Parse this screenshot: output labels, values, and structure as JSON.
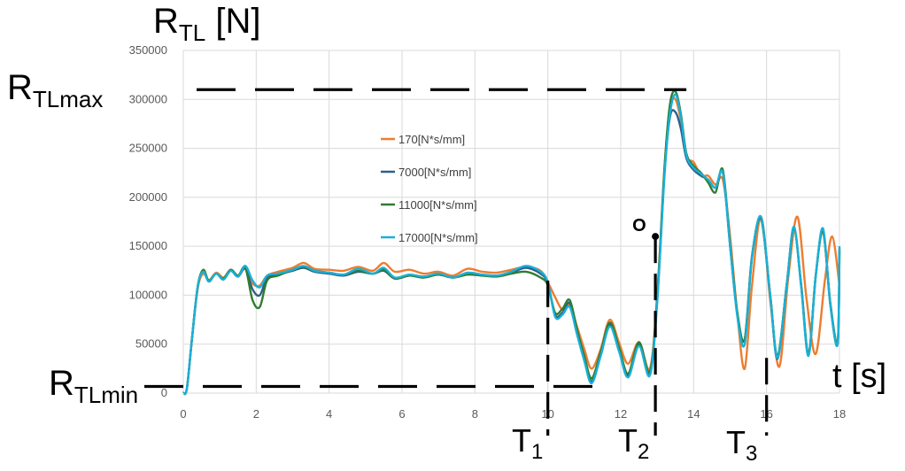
{
  "chart_data": {
    "type": "line",
    "ylabel_main": "R",
    "ylabel_sub": "TL",
    "ylabel_unit": " [N]",
    "xlabel": "t [s]",
    "xlim": [
      0,
      18
    ],
    "ylim": [
      0,
      350000
    ],
    "xticks": [
      0,
      2,
      4,
      6,
      8,
      10,
      12,
      14,
      16,
      18
    ],
    "yticks": [
      0,
      50000,
      100000,
      150000,
      200000,
      250000,
      300000,
      350000
    ],
    "grid": true,
    "legend_position": "inside-left",
    "series": [
      {
        "name": "170[N*s/mm]",
        "color": "#ed7d31",
        "points": [
          [
            0,
            0
          ],
          [
            0.1,
            5000
          ],
          [
            0.25,
            60000
          ],
          [
            0.4,
            108000
          ],
          [
            0.55,
            122000
          ],
          [
            0.7,
            115000
          ],
          [
            0.9,
            123000
          ],
          [
            1.1,
            118000
          ],
          [
            1.3,
            126000
          ],
          [
            1.5,
            120000
          ],
          [
            1.7,
            128000
          ],
          [
            1.9,
            112000
          ],
          [
            2.1,
            110000
          ],
          [
            2.3,
            120000
          ],
          [
            2.6,
            124000
          ],
          [
            3.0,
            128000
          ],
          [
            3.3,
            133000
          ],
          [
            3.6,
            127000
          ],
          [
            4.0,
            126000
          ],
          [
            4.4,
            125000
          ],
          [
            4.8,
            129000
          ],
          [
            5.2,
            125000
          ],
          [
            5.5,
            133000
          ],
          [
            5.8,
            124000
          ],
          [
            6.2,
            126000
          ],
          [
            6.6,
            122000
          ],
          [
            7.0,
            124000
          ],
          [
            7.4,
            120000
          ],
          [
            7.8,
            127000
          ],
          [
            8.2,
            124000
          ],
          [
            8.6,
            123000
          ],
          [
            9.0,
            126000
          ],
          [
            9.4,
            129000
          ],
          [
            9.8,
            125000
          ],
          [
            10.0,
            113000
          ],
          [
            10.2,
            98000
          ],
          [
            10.4,
            85000
          ],
          [
            10.6,
            90000
          ],
          [
            10.8,
            68000
          ],
          [
            11.0,
            45000
          ],
          [
            11.2,
            25000
          ],
          [
            11.45,
            45000
          ],
          [
            11.7,
            75000
          ],
          [
            11.95,
            52000
          ],
          [
            12.2,
            30000
          ],
          [
            12.5,
            52000
          ],
          [
            12.8,
            25000
          ],
          [
            13.0,
            100000
          ],
          [
            13.2,
            230000
          ],
          [
            13.35,
            292000
          ],
          [
            13.5,
            300000
          ],
          [
            13.65,
            278000
          ],
          [
            13.8,
            242000
          ],
          [
            14.0,
            236000
          ],
          [
            14.2,
            222000
          ],
          [
            14.4,
            222000
          ],
          [
            14.6,
            213000
          ],
          [
            14.8,
            218000
          ],
          [
            15.0,
            160000
          ],
          [
            15.2,
            80000
          ],
          [
            15.4,
            25000
          ],
          [
            15.6,
            110000
          ],
          [
            15.85,
            180000
          ],
          [
            16.1,
            95000
          ],
          [
            16.35,
            27000
          ],
          [
            16.6,
            120000
          ],
          [
            16.85,
            180000
          ],
          [
            17.1,
            95000
          ],
          [
            17.35,
            40000
          ],
          [
            17.6,
            115000
          ],
          [
            17.8,
            160000
          ],
          [
            18.0,
            110000
          ]
        ]
      },
      {
        "name": "7000[N*s/mm]",
        "color": "#2f5f8a",
        "points": [
          [
            0,
            0
          ],
          [
            0.1,
            5000
          ],
          [
            0.25,
            60000
          ],
          [
            0.4,
            110000
          ],
          [
            0.55,
            125000
          ],
          [
            0.7,
            114000
          ],
          [
            0.9,
            122000
          ],
          [
            1.1,
            116000
          ],
          [
            1.3,
            125000
          ],
          [
            1.5,
            119000
          ],
          [
            1.7,
            127000
          ],
          [
            1.9,
            106000
          ],
          [
            2.1,
            100000
          ],
          [
            2.3,
            118000
          ],
          [
            2.6,
            121000
          ],
          [
            3.0,
            125000
          ],
          [
            3.3,
            128000
          ],
          [
            3.6,
            124000
          ],
          [
            4.0,
            122000
          ],
          [
            4.4,
            120000
          ],
          [
            4.8,
            124000
          ],
          [
            5.2,
            122000
          ],
          [
            5.5,
            125000
          ],
          [
            5.8,
            117000
          ],
          [
            6.2,
            120000
          ],
          [
            6.6,
            119000
          ],
          [
            7.0,
            121000
          ],
          [
            7.4,
            118000
          ],
          [
            7.8,
            122000
          ],
          [
            8.2,
            121000
          ],
          [
            8.6,
            120000
          ],
          [
            9.0,
            123000
          ],
          [
            9.4,
            128000
          ],
          [
            9.8,
            122000
          ],
          [
            10.0,
            112000
          ],
          [
            10.2,
            80000
          ],
          [
            10.4,
            82000
          ],
          [
            10.6,
            92000
          ],
          [
            10.8,
            62000
          ],
          [
            11.0,
            35000
          ],
          [
            11.2,
            12000
          ],
          [
            11.45,
            40000
          ],
          [
            11.7,
            70000
          ],
          [
            11.95,
            45000
          ],
          [
            12.2,
            18000
          ],
          [
            12.5,
            50000
          ],
          [
            12.8,
            20000
          ],
          [
            13.0,
            95000
          ],
          [
            13.2,
            225000
          ],
          [
            13.35,
            282000
          ],
          [
            13.5,
            287000
          ],
          [
            13.65,
            270000
          ],
          [
            13.8,
            240000
          ],
          [
            14.0,
            228000
          ],
          [
            14.2,
            222000
          ],
          [
            14.4,
            218000
          ],
          [
            14.6,
            210000
          ],
          [
            14.8,
            225000
          ],
          [
            15.0,
            150000
          ],
          [
            15.2,
            80000
          ],
          [
            15.4,
            55000
          ],
          [
            15.6,
            140000
          ],
          [
            15.85,
            178000
          ],
          [
            16.1,
            100000
          ],
          [
            16.3,
            35000
          ],
          [
            16.55,
            110000
          ],
          [
            16.75,
            168000
          ],
          [
            16.95,
            110000
          ],
          [
            17.15,
            40000
          ],
          [
            17.35,
            120000
          ],
          [
            17.55,
            165000
          ],
          [
            17.75,
            90000
          ],
          [
            17.95,
            50000
          ],
          [
            18.0,
            148000
          ]
        ]
      },
      {
        "name": "11000[N*s/mm]",
        "color": "#2e7d32",
        "points": [
          [
            0,
            0
          ],
          [
            0.1,
            5000
          ],
          [
            0.25,
            60000
          ],
          [
            0.4,
            110000
          ],
          [
            0.55,
            126000
          ],
          [
            0.7,
            115000
          ],
          [
            0.9,
            122000
          ],
          [
            1.1,
            117000
          ],
          [
            1.3,
            126000
          ],
          [
            1.5,
            120000
          ],
          [
            1.7,
            128000
          ],
          [
            1.9,
            95000
          ],
          [
            2.1,
            88000
          ],
          [
            2.3,
            115000
          ],
          [
            2.6,
            120000
          ],
          [
            3.0,
            126000
          ],
          [
            3.3,
            129000
          ],
          [
            3.6,
            125000
          ],
          [
            4.0,
            123000
          ],
          [
            4.4,
            121000
          ],
          [
            4.8,
            125000
          ],
          [
            5.2,
            122000
          ],
          [
            5.5,
            126000
          ],
          [
            5.8,
            117000
          ],
          [
            6.2,
            120000
          ],
          [
            6.6,
            118000
          ],
          [
            7.0,
            121000
          ],
          [
            7.4,
            118000
          ],
          [
            7.8,
            121000
          ],
          [
            8.2,
            120000
          ],
          [
            8.6,
            119000
          ],
          [
            9.0,
            122000
          ],
          [
            9.4,
            124000
          ],
          [
            9.8,
            118000
          ],
          [
            10.0,
            110000
          ],
          [
            10.2,
            82000
          ],
          [
            10.4,
            86000
          ],
          [
            10.6,
            95000
          ],
          [
            10.8,
            65000
          ],
          [
            11.0,
            38000
          ],
          [
            11.2,
            15000
          ],
          [
            11.45,
            42000
          ],
          [
            11.7,
            72000
          ],
          [
            11.95,
            47000
          ],
          [
            12.2,
            20000
          ],
          [
            12.5,
            52000
          ],
          [
            12.8,
            22000
          ],
          [
            13.0,
            98000
          ],
          [
            13.2,
            230000
          ],
          [
            13.35,
            295000
          ],
          [
            13.5,
            308000
          ],
          [
            13.65,
            285000
          ],
          [
            13.8,
            245000
          ],
          [
            14.0,
            232000
          ],
          [
            14.2,
            225000
          ],
          [
            14.4,
            215000
          ],
          [
            14.6,
            205000
          ],
          [
            14.8,
            228000
          ],
          [
            15.0,
            152000
          ],
          [
            15.2,
            82000
          ],
          [
            15.4,
            55000
          ],
          [
            15.6,
            138000
          ],
          [
            15.85,
            178000
          ],
          [
            16.1,
            100000
          ],
          [
            16.3,
            38000
          ],
          [
            16.55,
            110000
          ],
          [
            16.75,
            168000
          ],
          [
            16.95,
            110000
          ],
          [
            17.15,
            40000
          ],
          [
            17.35,
            120000
          ],
          [
            17.55,
            165000
          ],
          [
            17.75,
            92000
          ],
          [
            17.95,
            52000
          ],
          [
            18.0,
            145000
          ]
        ]
      },
      {
        "name": "17000[N*s/mm]",
        "color": "#1ab0d8",
        "points": [
          [
            0,
            0
          ],
          [
            0.1,
            5000
          ],
          [
            0.25,
            60000
          ],
          [
            0.4,
            110000
          ],
          [
            0.55,
            124000
          ],
          [
            0.7,
            114000
          ],
          [
            0.9,
            122000
          ],
          [
            1.1,
            116000
          ],
          [
            1.3,
            125000
          ],
          [
            1.5,
            119000
          ],
          [
            1.7,
            130000
          ],
          [
            1.9,
            115000
          ],
          [
            2.1,
            108000
          ],
          [
            2.3,
            120000
          ],
          [
            2.6,
            122000
          ],
          [
            3.0,
            126000
          ],
          [
            3.3,
            130000
          ],
          [
            3.6,
            125000
          ],
          [
            4.0,
            123000
          ],
          [
            4.4,
            121000
          ],
          [
            4.8,
            127000
          ],
          [
            5.2,
            122000
          ],
          [
            5.5,
            128000
          ],
          [
            5.8,
            118000
          ],
          [
            6.2,
            121000
          ],
          [
            6.6,
            119000
          ],
          [
            7.0,
            122000
          ],
          [
            7.4,
            118000
          ],
          [
            7.8,
            123000
          ],
          [
            8.2,
            121000
          ],
          [
            8.6,
            120000
          ],
          [
            9.0,
            124000
          ],
          [
            9.4,
            130000
          ],
          [
            9.8,
            124000
          ],
          [
            10.0,
            113000
          ],
          [
            10.2,
            78000
          ],
          [
            10.4,
            80000
          ],
          [
            10.6,
            88000
          ],
          [
            10.8,
            60000
          ],
          [
            11.0,
            33000
          ],
          [
            11.2,
            10000
          ],
          [
            11.45,
            38000
          ],
          [
            11.7,
            68000
          ],
          [
            11.95,
            43000
          ],
          [
            12.2,
            16000
          ],
          [
            12.5,
            48000
          ],
          [
            12.8,
            18000
          ],
          [
            13.0,
            93000
          ],
          [
            13.2,
            222000
          ],
          [
            13.35,
            285000
          ],
          [
            13.5,
            305000
          ],
          [
            13.65,
            282000
          ],
          [
            13.8,
            243000
          ],
          [
            14.0,
            230000
          ],
          [
            14.2,
            224000
          ],
          [
            14.4,
            218000
          ],
          [
            14.6,
            210000
          ],
          [
            14.8,
            225000
          ],
          [
            15.0,
            150000
          ],
          [
            15.2,
            78000
          ],
          [
            15.4,
            50000
          ],
          [
            15.6,
            138000
          ],
          [
            15.85,
            180000
          ],
          [
            16.1,
            100000
          ],
          [
            16.3,
            36000
          ],
          [
            16.55,
            110000
          ],
          [
            16.75,
            170000
          ],
          [
            16.95,
            108000
          ],
          [
            17.15,
            38000
          ],
          [
            17.35,
            120000
          ],
          [
            17.55,
            168000
          ],
          [
            17.75,
            90000
          ],
          [
            17.95,
            50000
          ],
          [
            18.0,
            150000
          ]
        ]
      }
    ],
    "annotations": {
      "rmax": {
        "main": "R",
        "sub": "TLmax",
        "value": 310000,
        "x_from": 0,
        "x_to": 13.8
      },
      "rmin": {
        "main": "R",
        "sub": "TLmin",
        "value": 5000,
        "x_from": -1,
        "x_to": 11.4
      },
      "point_o": {
        "label": "O",
        "x": 12.95,
        "y": 160000
      },
      "t1": {
        "main": "T",
        "sub": "1",
        "x": 10.0,
        "y_top": 115000
      },
      "t2": {
        "main": "T",
        "sub": "2",
        "x": 12.95,
        "y_top": 160000
      },
      "t3": {
        "main": "T",
        "sub": "3",
        "x": 16.0,
        "y_top": 36000
      }
    }
  }
}
